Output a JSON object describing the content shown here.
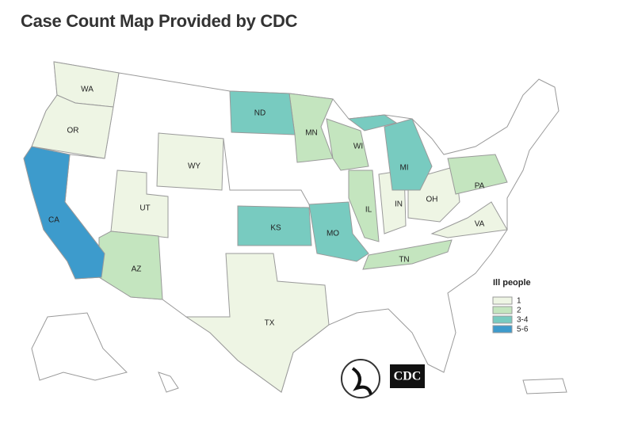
{
  "header": {
    "title": "Case Count Map Provided by CDC"
  },
  "legend": {
    "title": "Ill people",
    "items": [
      {
        "label": "1",
        "color": "#eef5e4",
        "states": [
          "WA",
          "OR",
          "UT",
          "WY",
          "IN",
          "OH",
          "VA",
          "TX"
        ]
      },
      {
        "label": "2",
        "color": "#c4e5bf",
        "states": [
          "AZ",
          "MN",
          "WI",
          "IL",
          "TN",
          "PA"
        ]
      },
      {
        "label": "3-4",
        "color": "#78cbc0",
        "states": [
          "ND",
          "MI",
          "KS",
          "MO"
        ]
      },
      {
        "label": "5-6",
        "color": "#3d9bcc",
        "states": [
          "CA"
        ]
      }
    ]
  },
  "logo": {
    "text": "CDC"
  }
}
